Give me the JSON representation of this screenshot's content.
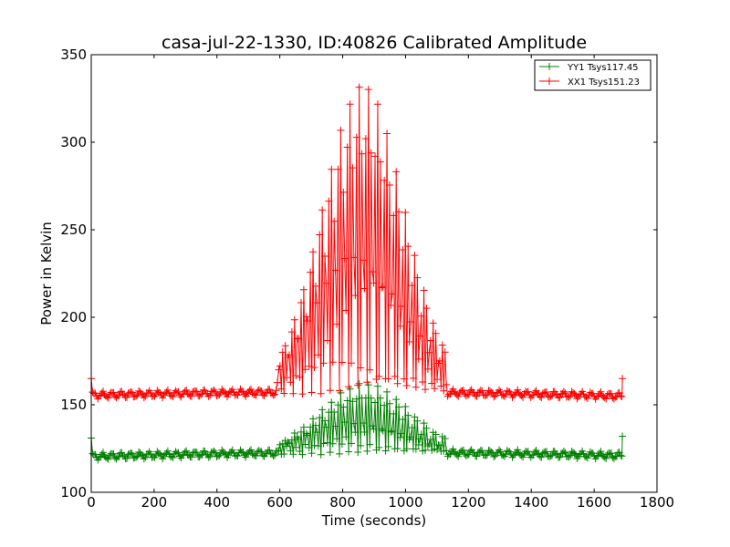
{
  "chart_data": {
    "type": "line",
    "title": "casa-jul-22-1330, ID:40826 Calibrated Amplitude",
    "xlabel": "Time (seconds)",
    "ylabel": "Power in Kelvin",
    "xlim": [
      0,
      1800
    ],
    "ylim": [
      100,
      350
    ],
    "xticks": [
      "0",
      "200",
      "400",
      "600",
      "800",
      "1000",
      "1200",
      "1400",
      "1600",
      "1800"
    ],
    "yticks": [
      "100",
      "150",
      "200",
      "250",
      "300",
      "350"
    ],
    "grid": false,
    "legend_position": "top-right",
    "marker": "+",
    "series": [
      {
        "name": "YY1 Tsys117.45",
        "color": "#008000",
        "baseline_start": 120.5,
        "baseline_end": 121.0,
        "baseline_hump": 2.0,
        "peak_value": 162,
        "peak_x": 870,
        "peak_width": 140,
        "active_range": [
          600,
          1130
        ],
        "x_range": [
          0,
          1690
        ],
        "endpoint_values": [
          131,
          132
        ]
      },
      {
        "name": "XX1 Tsys151.23",
        "color": "#ff0000",
        "baseline_start": 155.5,
        "baseline_end": 155.0,
        "baseline_hump": 2.0,
        "peak_value": 335,
        "peak_x": 865,
        "peak_width": 130,
        "active_range": [
          590,
          1130
        ],
        "x_range": [
          0,
          1690
        ],
        "endpoint_values": [
          165,
          165
        ]
      }
    ]
  }
}
